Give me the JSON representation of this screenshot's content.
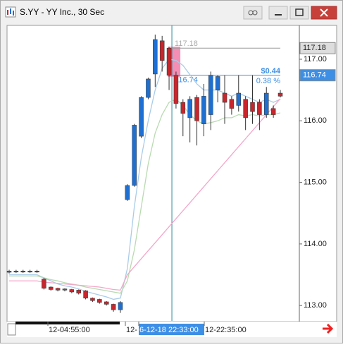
{
  "window": {
    "title": "S.YY - YY Inc., 30 Sec"
  },
  "chart_data": {
    "type": "candlestick",
    "open": [
      113.54,
      113.55,
      113.56,
      113.55,
      113.56,
      113.43,
      113.3,
      113.28,
      113.27,
      113.26,
      113.25,
      113.24,
      113.12,
      113.1,
      113.06,
      113.02,
      112.93,
      114.72,
      114.95,
      115.75,
      116.38,
      116.76,
      117.3,
      117.18,
      116.74,
      116.3,
      116.05,
      116.38,
      115.95,
      116.1,
      116.5,
      116.45,
      116.35,
      116.25,
      116.35,
      116.3,
      116.3,
      116.1,
      116.2,
      116.45
    ],
    "high": [
      113.58,
      113.58,
      113.58,
      113.58,
      113.58,
      113.45,
      113.31,
      113.29,
      113.28,
      113.27,
      113.26,
      113.25,
      113.13,
      113.11,
      113.07,
      113.03,
      113.07,
      114.97,
      115.95,
      116.4,
      116.7,
      117.4,
      117.38,
      117.2,
      116.8,
      116.35,
      116.4,
      116.42,
      116.6,
      116.8,
      116.74,
      116.74,
      116.4,
      116.74,
      116.4,
      116.74,
      116.35,
      116.55,
      116.25,
      116.5
    ],
    "low": [
      113.52,
      113.53,
      113.53,
      113.53,
      113.53,
      113.26,
      113.24,
      113.23,
      113.23,
      113.2,
      113.18,
      113.1,
      113.06,
      113.03,
      113.0,
      112.9,
      112.88,
      114.7,
      114.93,
      115.72,
      116.35,
      116.55,
      116.8,
      116.5,
      116.2,
      115.75,
      115.65,
      115.6,
      115.75,
      115.85,
      116.3,
      115.95,
      116.1,
      116.15,
      115.85,
      115.95,
      115.85,
      116.05,
      116.05,
      116.38
    ],
    "close": [
      113.56,
      113.56,
      113.55,
      113.56,
      113.55,
      113.28,
      113.26,
      113.25,
      113.25,
      113.22,
      113.2,
      113.12,
      113.08,
      113.05,
      113.02,
      112.93,
      113.05,
      114.95,
      115.93,
      116.38,
      116.68,
      117.32,
      116.98,
      116.74,
      116.28,
      116.12,
      116.35,
      116.0,
      116.4,
      116.74,
      116.72,
      116.3,
      116.2,
      116.45,
      116.05,
      116.15,
      116.1,
      116.45,
      116.1,
      116.4
    ],
    "up_color": "#1f6fd1",
    "down_color": "#c8262d",
    "series": [
      {
        "color": "#a9cce8",
        "values": [
          113.5,
          113.5,
          113.5,
          113.5,
          113.5,
          113.45,
          113.4,
          113.35,
          113.32,
          113.3,
          113.27,
          113.23,
          113.2,
          113.17,
          113.14,
          113.1,
          113.12,
          113.6,
          114.6,
          115.4,
          116.0,
          116.5,
          116.85,
          117.0,
          116.98,
          116.9,
          116.75,
          116.6,
          116.5,
          116.5,
          116.5,
          116.45,
          116.4,
          116.45,
          116.4,
          116.35,
          116.3,
          116.35,
          116.3,
          116.35
        ]
      },
      {
        "color": "#b8dbb0",
        "values": [
          113.48,
          113.48,
          113.48,
          113.48,
          113.48,
          113.45,
          113.42,
          113.4,
          113.37,
          113.35,
          113.33,
          113.3,
          113.28,
          113.26,
          113.24,
          113.22,
          113.2,
          113.4,
          113.9,
          114.6,
          115.3,
          115.8,
          116.1,
          116.3,
          116.35,
          116.25,
          116.1,
          116.0,
          115.95,
          115.97,
          116.0,
          116.05,
          116.05,
          116.1,
          116.08,
          116.1,
          116.08,
          116.1,
          116.1,
          116.13
        ]
      },
      {
        "color": "#f4a6c8",
        "values": [
          113.4,
          113.4,
          113.4,
          113.4,
          113.4,
          113.38,
          113.37,
          113.36,
          113.35,
          113.34,
          113.33,
          113.32,
          113.31,
          113.3,
          113.28,
          113.26,
          113.25,
          113.5,
          113.63,
          113.76,
          113.89,
          114.02,
          114.15,
          114.28,
          114.41,
          114.54,
          114.67,
          114.8,
          114.93,
          115.06,
          115.19,
          115.32,
          115.45,
          115.58,
          115.71,
          115.84,
          115.97,
          116.1,
          116.23,
          116.36
        ]
      }
    ],
    "ylim": [
      112.75,
      117.55
    ],
    "yticks": [
      {
        "value": 113,
        "label": "113.00"
      },
      {
        "value": 114,
        "label": "114.00"
      },
      {
        "value": 115,
        "label": "115.00"
      },
      {
        "value": 116,
        "label": "116.00"
      },
      {
        "value": 117,
        "label": "117.00"
      }
    ],
    "x_labels": [
      "12-04:55:00",
      "12-",
      "6-12-18 22:33:00",
      "12-22:35:00"
    ],
    "price_tags": [
      {
        "value": 117.18,
        "label": "117.18"
      },
      {
        "value": 116.74,
        "label": "116.74"
      }
    ],
    "change": {
      "value": 0.44,
      "label": "$0.44"
    },
    "change_percent": {
      "value": 0.38,
      "label": "0.38 %"
    }
  }
}
